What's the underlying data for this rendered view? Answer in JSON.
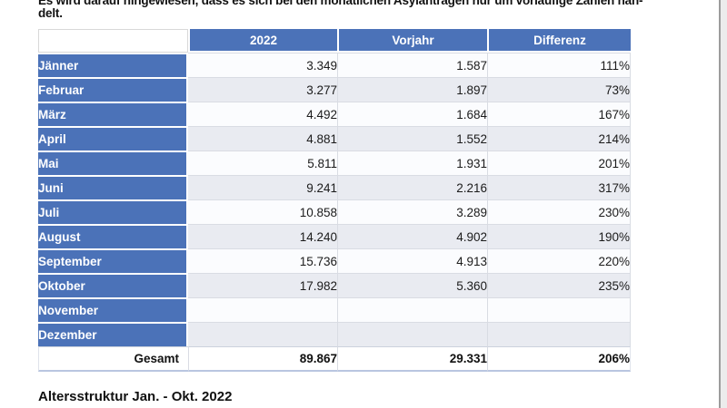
{
  "document": {
    "intro_line1": "Es wird darauf hingewiesen, dass es sich bei den monatlichen Asylanträgen nur um vorläufige Zahlen han-",
    "intro_line2": "delt.",
    "section_title": "Altersstruktur Jan. - Okt. 2022"
  },
  "table": {
    "columns": [
      "",
      "2022",
      "Vorjahr",
      "Differenz"
    ],
    "rows": [
      {
        "month": "Jänner",
        "y2022": "3.349",
        "vorjahr": "1.587",
        "differenz": "111%"
      },
      {
        "month": "Februar",
        "y2022": "3.277",
        "vorjahr": "1.897",
        "differenz": "73%"
      },
      {
        "month": "März",
        "y2022": "4.492",
        "vorjahr": "1.684",
        "differenz": "167%"
      },
      {
        "month": "April",
        "y2022": "4.881",
        "vorjahr": "1.552",
        "differenz": "214%"
      },
      {
        "month": "Mai",
        "y2022": "5.811",
        "vorjahr": "1.931",
        "differenz": "201%"
      },
      {
        "month": "Juni",
        "y2022": "9.241",
        "vorjahr": "2.216",
        "differenz": "317%"
      },
      {
        "month": "Juli",
        "y2022": "10.858",
        "vorjahr": "3.289",
        "differenz": "230%"
      },
      {
        "month": "August",
        "y2022": "14.240",
        "vorjahr": "4.902",
        "differenz": "190%"
      },
      {
        "month": "September",
        "y2022": "15.736",
        "vorjahr": "4.913",
        "differenz": "220%"
      },
      {
        "month": "Oktober",
        "y2022": "17.982",
        "vorjahr": "5.360",
        "differenz": "235%"
      },
      {
        "month": "November",
        "y2022": "",
        "vorjahr": "",
        "differenz": ""
      },
      {
        "month": "Dezember",
        "y2022": "",
        "vorjahr": "",
        "differenz": ""
      }
    ],
    "total": {
      "label": "Gesamt",
      "y2022": "89.867",
      "vorjahr": "29.331",
      "differenz": "206%"
    }
  },
  "colors": {
    "header_blue": "#4B72B8",
    "row_shade": "#E9EBF1",
    "row_light": "#FBFCFE",
    "cell_border": "#D9DCE3",
    "total_border": "#B9C6E0"
  }
}
